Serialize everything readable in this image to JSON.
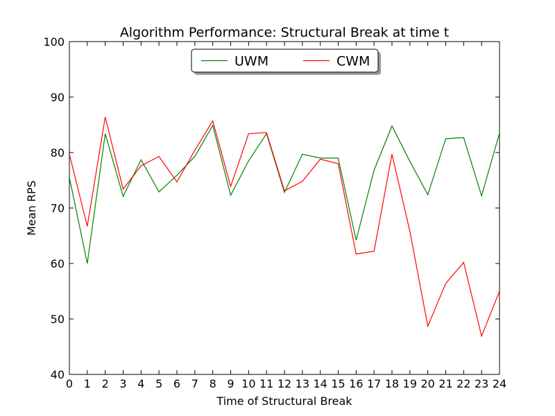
{
  "chart_data": {
    "type": "line",
    "title": "Algorithm Performance: Structural Break at time t",
    "xlabel": "Time of Structural Break",
    "ylabel": "Mean RPS",
    "xlim": [
      0,
      24
    ],
    "ylim": [
      40,
      100
    ],
    "xticks": [
      "0",
      "1",
      "2",
      "3",
      "4",
      "5",
      "6",
      "7",
      "8",
      "9",
      "10",
      "11",
      "12",
      "13",
      "14",
      "15",
      "16",
      "17",
      "18",
      "19",
      "20",
      "21",
      "22",
      "23",
      "24"
    ],
    "yticks": [
      "40",
      "50",
      "60",
      "70",
      "80",
      "90",
      "100"
    ],
    "x": [
      0,
      1,
      2,
      3,
      4,
      5,
      6,
      7,
      8,
      9,
      10,
      11,
      12,
      13,
      14,
      15,
      16,
      17,
      18,
      19,
      20,
      21,
      22,
      23,
      24
    ],
    "series": [
      {
        "name": "UWM",
        "color": "#008000",
        "values": [
          75.5,
          60.0,
          83.4,
          72.1,
          78.7,
          72.9,
          75.9,
          79.3,
          84.9,
          72.3,
          78.5,
          83.4,
          72.8,
          79.7,
          79.0,
          79.0,
          64.2,
          76.8,
          84.8,
          78.4,
          72.4,
          82.5,
          82.7,
          72.2,
          83.5
        ]
      },
      {
        "name": "CWM",
        "color": "#ff0000",
        "values": [
          79.7,
          66.7,
          86.4,
          73.4,
          77.6,
          79.3,
          74.7,
          80.4,
          85.7,
          73.9,
          83.4,
          83.6,
          73.1,
          74.8,
          78.8,
          78.0,
          61.7,
          62.2,
          79.7,
          65.8,
          48.7,
          56.4,
          60.2,
          46.9,
          55.0
        ]
      }
    ],
    "grid": false,
    "legend_position": "top-center"
  }
}
